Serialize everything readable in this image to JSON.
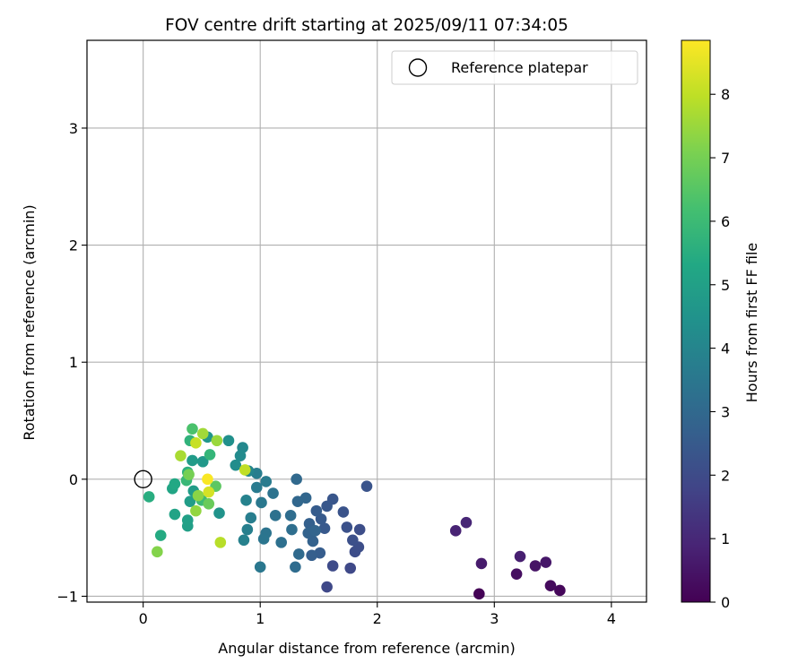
{
  "chart_data": {
    "type": "scatter",
    "title": "FOV centre drift starting at 2025/09/11 07:34:05",
    "xlabel": "Angular distance from reference (arcmin)",
    "ylabel": "Rotation from reference (arcmin)",
    "xlim": [
      -0.48,
      4.3
    ],
    "ylim": [
      -1.05,
      3.75
    ],
    "xticks": [
      0,
      1,
      2,
      3,
      4
    ],
    "yticks": [
      -1,
      0,
      1,
      2,
      3
    ],
    "grid": true,
    "legend": {
      "placement": "top-right",
      "entries": [
        "Reference platepar"
      ]
    },
    "reference_point": {
      "x": 0,
      "y": 0,
      "label": "Reference platepar"
    },
    "colorbar": {
      "label": "Hours from first FF file",
      "range": [
        0,
        8.85
      ],
      "ticks": [
        0,
        1,
        2,
        3,
        4,
        5,
        6,
        7,
        8
      ],
      "colormap": "viridis"
    },
    "points": [
      {
        "x": 2.87,
        "y": -0.98,
        "c": 0.05
      },
      {
        "x": 3.56,
        "y": -0.95,
        "c": 0.15
      },
      {
        "x": 3.48,
        "y": -0.91,
        "c": 0.25
      },
      {
        "x": 3.19,
        "y": -0.81,
        "c": 0.35
      },
      {
        "x": 3.35,
        "y": -0.74,
        "c": 0.45
      },
      {
        "x": 3.44,
        "y": -0.71,
        "c": 0.55
      },
      {
        "x": 2.89,
        "y": -0.72,
        "c": 0.65
      },
      {
        "x": 3.22,
        "y": -0.66,
        "c": 0.75
      },
      {
        "x": 2.67,
        "y": -0.44,
        "c": 0.85
      },
      {
        "x": 2.76,
        "y": -0.37,
        "c": 0.95
      },
      {
        "x": 1.57,
        "y": -0.92,
        "c": 1.9
      },
      {
        "x": 1.62,
        "y": -0.74,
        "c": 2.0
      },
      {
        "x": 1.77,
        "y": -0.76,
        "c": 1.95
      },
      {
        "x": 1.81,
        "y": -0.62,
        "c": 2.05
      },
      {
        "x": 1.84,
        "y": -0.58,
        "c": 2.1
      },
      {
        "x": 1.79,
        "y": -0.52,
        "c": 2.15
      },
      {
        "x": 1.74,
        "y": -0.41,
        "c": 2.2
      },
      {
        "x": 1.71,
        "y": -0.28,
        "c": 2.25
      },
      {
        "x": 1.85,
        "y": -0.43,
        "c": 2.1
      },
      {
        "x": 1.91,
        "y": -0.06,
        "c": 2.3
      },
      {
        "x": 1.62,
        "y": -0.17,
        "c": 2.35
      },
      {
        "x": 1.57,
        "y": -0.23,
        "c": 2.4
      },
      {
        "x": 1.55,
        "y": -0.42,
        "c": 2.45
      },
      {
        "x": 1.52,
        "y": -0.34,
        "c": 2.5
      },
      {
        "x": 1.48,
        "y": -0.27,
        "c": 2.55
      },
      {
        "x": 1.51,
        "y": -0.63,
        "c": 2.6
      },
      {
        "x": 1.44,
        "y": -0.65,
        "c": 2.65
      },
      {
        "x": 1.42,
        "y": -0.38,
        "c": 2.7
      },
      {
        "x": 1.45,
        "y": -0.53,
        "c": 2.75
      },
      {
        "x": 1.41,
        "y": -0.46,
        "c": 2.8
      },
      {
        "x": 1.47,
        "y": -0.44,
        "c": 2.85
      },
      {
        "x": 1.39,
        "y": -0.16,
        "c": 2.9
      },
      {
        "x": 1.32,
        "y": -0.19,
        "c": 2.95
      },
      {
        "x": 1.31,
        "y": 0.0,
        "c": 3.0
      },
      {
        "x": 1.33,
        "y": -0.64,
        "c": 3.05
      },
      {
        "x": 1.3,
        "y": -0.75,
        "c": 3.1
      },
      {
        "x": 1.26,
        "y": -0.31,
        "c": 3.15
      },
      {
        "x": 1.27,
        "y": -0.43,
        "c": 3.2
      },
      {
        "x": 1.18,
        "y": -0.54,
        "c": 3.25
      },
      {
        "x": 1.13,
        "y": -0.31,
        "c": 3.3
      },
      {
        "x": 1.11,
        "y": -0.12,
        "c": 3.35
      },
      {
        "x": 1.05,
        "y": -0.46,
        "c": 3.4
      },
      {
        "x": 1.03,
        "y": -0.51,
        "c": 3.45
      },
      {
        "x": 1.0,
        "y": -0.75,
        "c": 3.5
      },
      {
        "x": 1.01,
        "y": -0.2,
        "c": 3.55
      },
      {
        "x": 0.97,
        "y": -0.07,
        "c": 3.6
      },
      {
        "x": 1.05,
        "y": -0.02,
        "c": 3.65
      },
      {
        "x": 0.97,
        "y": 0.05,
        "c": 3.7
      },
      {
        "x": 0.92,
        "y": -0.33,
        "c": 3.75
      },
      {
        "x": 0.89,
        "y": -0.43,
        "c": 3.8
      },
      {
        "x": 0.86,
        "y": -0.52,
        "c": 3.85
      },
      {
        "x": 0.88,
        "y": -0.18,
        "c": 3.9
      },
      {
        "x": 0.9,
        "y": 0.07,
        "c": 4.0
      },
      {
        "x": 0.85,
        "y": 0.27,
        "c": 4.1
      },
      {
        "x": 0.83,
        "y": 0.2,
        "c": 4.2
      },
      {
        "x": 0.79,
        "y": 0.12,
        "c": 4.3
      },
      {
        "x": 0.73,
        "y": 0.33,
        "c": 4.4
      },
      {
        "x": 0.65,
        "y": -0.29,
        "c": 4.5
      },
      {
        "x": 0.55,
        "y": 0.36,
        "c": 4.6
      },
      {
        "x": 0.51,
        "y": 0.15,
        "c": 4.7
      },
      {
        "x": 0.42,
        "y": 0.16,
        "c": 4.8
      },
      {
        "x": 0.43,
        "y": -0.1,
        "c": 4.85
      },
      {
        "x": 0.4,
        "y": -0.19,
        "c": 4.9
      },
      {
        "x": 0.38,
        "y": -0.4,
        "c": 4.95
      },
      {
        "x": 0.38,
        "y": -0.35,
        "c": 5.0
      },
      {
        "x": 0.27,
        "y": -0.3,
        "c": 5.1
      },
      {
        "x": 0.25,
        "y": -0.08,
        "c": 5.2
      },
      {
        "x": 0.27,
        "y": -0.04,
        "c": 5.3
      },
      {
        "x": 0.15,
        "y": -0.48,
        "c": 5.4
      },
      {
        "x": 0.05,
        "y": -0.15,
        "c": 5.5
      },
      {
        "x": 0.38,
        "y": 0.06,
        "c": 5.6
      },
      {
        "x": 0.4,
        "y": 0.33,
        "c": 5.7
      },
      {
        "x": 0.57,
        "y": 0.21,
        "c": 5.8
      },
      {
        "x": 0.37,
        "y": -0.01,
        "c": 5.9
      },
      {
        "x": 0.5,
        "y": -0.18,
        "c": 6.0
      },
      {
        "x": 0.42,
        "y": 0.43,
        "c": 6.3
      },
      {
        "x": 0.62,
        "y": -0.06,
        "c": 6.6
      },
      {
        "x": 0.56,
        "y": -0.21,
        "c": 6.8
      },
      {
        "x": 0.39,
        "y": 0.04,
        "c": 7.0
      },
      {
        "x": 0.12,
        "y": -0.62,
        "c": 7.2
      },
      {
        "x": 0.47,
        "y": -0.14,
        "c": 7.3
      },
      {
        "x": 0.45,
        "y": -0.27,
        "c": 7.4
      },
      {
        "x": 0.63,
        "y": 0.33,
        "c": 7.5
      },
      {
        "x": 0.51,
        "y": 0.39,
        "c": 7.6
      },
      {
        "x": 0.32,
        "y": 0.2,
        "c": 7.7
      },
      {
        "x": 0.66,
        "y": -0.54,
        "c": 7.9
      },
      {
        "x": 0.87,
        "y": 0.08,
        "c": 8.0
      },
      {
        "x": 0.45,
        "y": 0.31,
        "c": 8.1
      },
      {
        "x": 0.56,
        "y": -0.11,
        "c": 8.3
      },
      {
        "x": 0.55,
        "y": 0.0,
        "c": 8.8
      }
    ]
  }
}
